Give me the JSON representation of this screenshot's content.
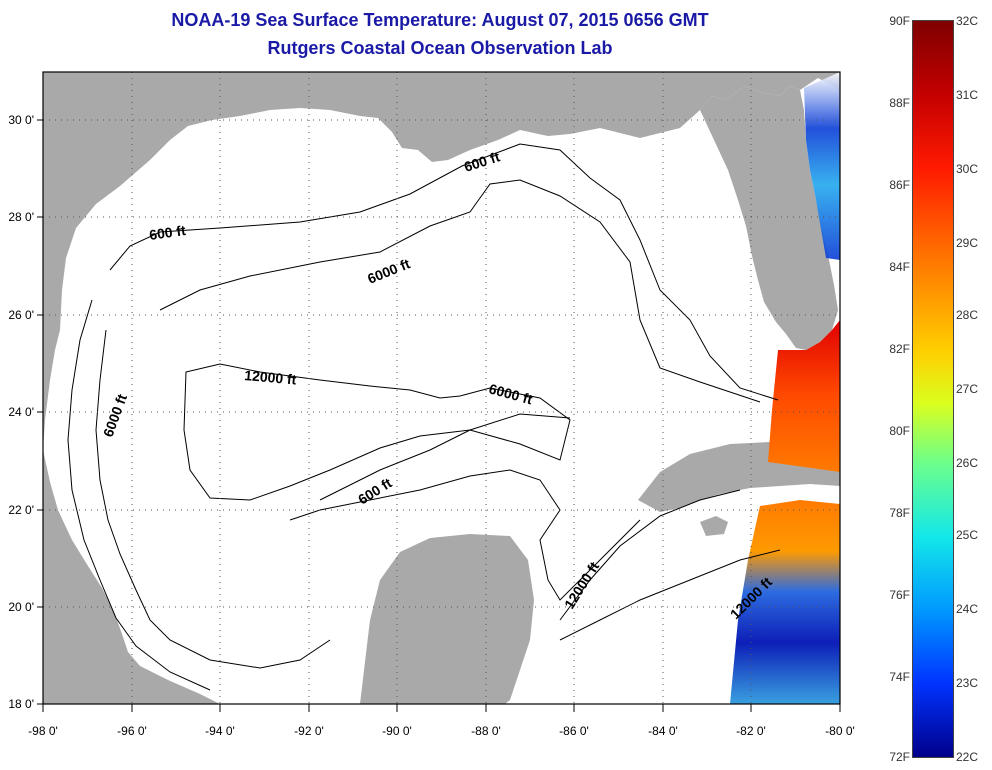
{
  "title": {
    "line1": "NOAA-19 Sea Surface Temperature:  August 07, 2015 0656 GMT",
    "line2": "Rutgers Coastal Ocean Observation Lab"
  },
  "map": {
    "region": "Gulf of Mexico",
    "lon_range": [
      -98,
      -80
    ],
    "lat_range": [
      18,
      31
    ],
    "grid": true,
    "y_ticks": [
      "30 0'",
      "28 0'",
      "26 0'",
      "24 0'",
      "22 0'",
      "20 0'",
      "18 0'"
    ],
    "x_ticks": [
      "-98 0'",
      "-96 0'",
      "-94 0'",
      "-92 0'",
      "-90 0'",
      "-88 0'",
      "-86 0'",
      "-84 0'",
      "-82 0'",
      "-80 0'"
    ],
    "contour_labels": {
      "a": "600 ft",
      "b": "600 ft",
      "c": "6000 ft",
      "d": "12000 ft",
      "e": "6000 ft",
      "f": "6000 ft",
      "g": "600 ft",
      "h": "12000 ft",
      "i": "12000 ft"
    },
    "colors": {
      "land": "#a9a9a9",
      "ocean": "#ffffff",
      "contour": "#000000",
      "title": "#1a1aa6"
    }
  },
  "colorbar": {
    "f_labels": [
      "90F",
      "88F",
      "86F",
      "84F",
      "82F",
      "80F",
      "78F",
      "76F",
      "74F",
      "72F"
    ],
    "c_labels": [
      "32C",
      "31C",
      "30C",
      "29C",
      "28C",
      "27C",
      "26C",
      "25C",
      "24C",
      "23C",
      "22C"
    ],
    "range_f": [
      72,
      90
    ],
    "range_c": [
      22,
      32
    ]
  }
}
